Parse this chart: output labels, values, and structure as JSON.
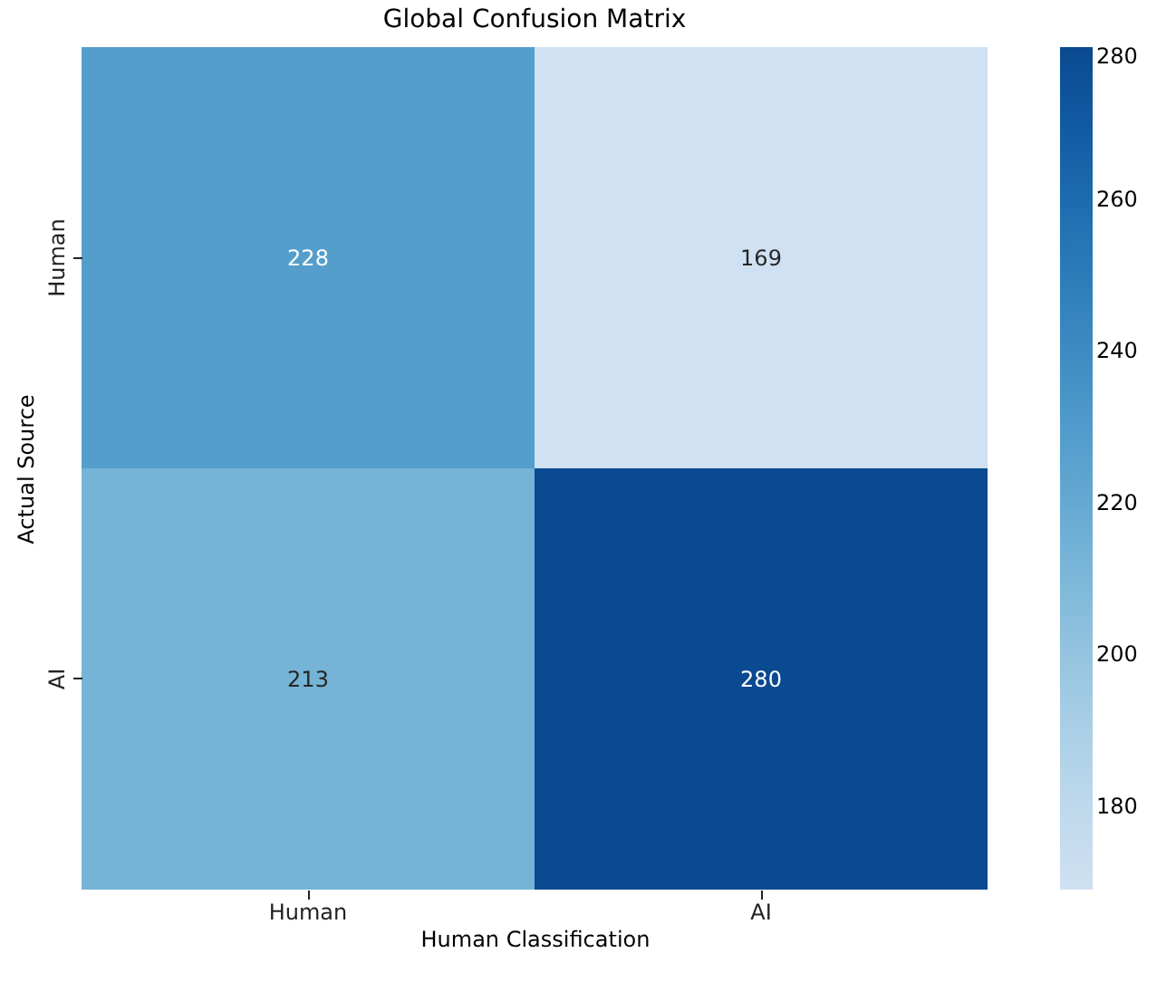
{
  "chart_data": {
    "type": "heatmap",
    "title": "Global Confusion Matrix",
    "xlabel": "Human Classification",
    "ylabel": "Actual Source",
    "categories": [
      "Human",
      "AI"
    ],
    "y_categories": [
      "Human",
      "AI"
    ],
    "cells": [
      [
        228,
        169
      ],
      [
        213,
        280
      ]
    ],
    "data_labels": true,
    "clim": [
      169,
      280
    ],
    "cticks": [
      180,
      200,
      220,
      240,
      260,
      280
    ]
  }
}
